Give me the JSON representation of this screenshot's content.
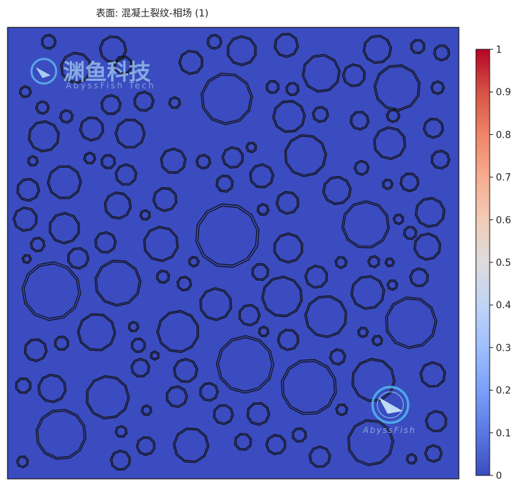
{
  "chart_data": {
    "type": "heatmap",
    "title": "表面: 混凝土裂纹-相场 (1)",
    "field_value": 0.0,
    "colorbar": {
      "range": [
        0,
        1
      ],
      "ticks": [
        0,
        0.1,
        0.2,
        0.3,
        0.4,
        0.5,
        0.6,
        0.7,
        0.8,
        0.9,
        1
      ],
      "tick_labels": [
        "0",
        "0.1",
        "0.2",
        "0.3",
        "0.4",
        "0.5",
        "0.6",
        "0.7",
        "0.8",
        "0.9",
        "1"
      ],
      "colormap": [
        "#3b4cc0",
        "#5a78e2",
        "#7b9ff9",
        "#9ebeff",
        "#c0d4f5",
        "#dddcdc",
        "#f2cbb7",
        "#f7ac8e",
        "#ee8468",
        "#d65244",
        "#b40426"
      ]
    },
    "background_color": "#3b4cc0",
    "aggregate_outline_color": "#111111"
  },
  "watermark": {
    "logo_text": "渊鱼科技",
    "logo_subtext": "AbyssFish Tech",
    "badge_text": "AbyssFish"
  }
}
